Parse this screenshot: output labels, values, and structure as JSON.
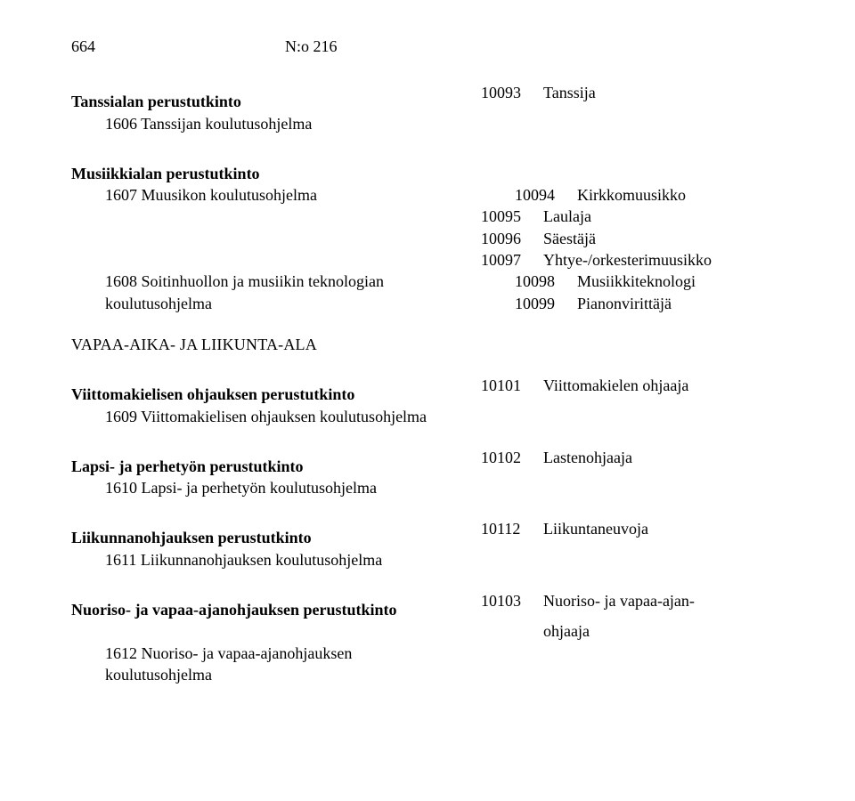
{
  "header": {
    "page_number": "664",
    "doc_number": "N:o 216"
  },
  "sections": {
    "tanssiala": {
      "title": "Tanssialan perustutkinto",
      "code": "10093",
      "label": "Tanssija",
      "sub1": "1606 Tanssijan koulutusohjelma"
    },
    "musiikkiala": {
      "title": "Musiikkialan perustutkinto",
      "sub1": "1607 Muusikon koulutusohjelma",
      "sub2a": "1608 Soitinhuollon ja musiikin teknologian",
      "sub2b": "koulutusohjelma",
      "rows": [
        {
          "code": "10094",
          "label": "Kirkkomuusikko"
        },
        {
          "code": "10095",
          "label": "Laulaja"
        },
        {
          "code": "10096",
          "label": "Säestäjä"
        },
        {
          "code": "10097",
          "label": "Yhtye-/orkesterimuusikko"
        },
        {
          "code": "10098",
          "label": "Musiikkiteknologi"
        },
        {
          "code": "10099",
          "label": "Pianonvirittäjä"
        }
      ]
    },
    "vapaa_heading": "VAPAA-AIKA- JA LIIKUNTA-ALA",
    "viittoma": {
      "title": "Viittomakielisen ohjauksen perustutkinto",
      "code": "10101",
      "label": "Viittomakielen ohjaaja",
      "sub1": "1609 Viittomakielisen ohjauksen koulutusohjelma"
    },
    "lapsi": {
      "title": "Lapsi- ja perhetyön perustutkinto",
      "code": "10102",
      "label": "Lastenohjaaja",
      "sub1": "1610 Lapsi- ja perhetyön koulutusohjelma"
    },
    "liikunta": {
      "title": "Liikunnanohjauksen perustutkinto",
      "code": "10112",
      "label": "Liikuntaneuvoja",
      "sub1": "1611 Liikunnanohjauksen koulutusohjelma"
    },
    "nuoriso": {
      "title": "Nuoriso- ja vapaa-ajanohjauksen perustutkinto",
      "code": "10103",
      "label_a": "Nuoriso- ja vapaa-ajan-",
      "label_b": "ohjaaja",
      "sub1a": "1612 Nuoriso- ja vapaa-ajanohjauksen",
      "sub1b": "koulutusohjelma"
    }
  }
}
